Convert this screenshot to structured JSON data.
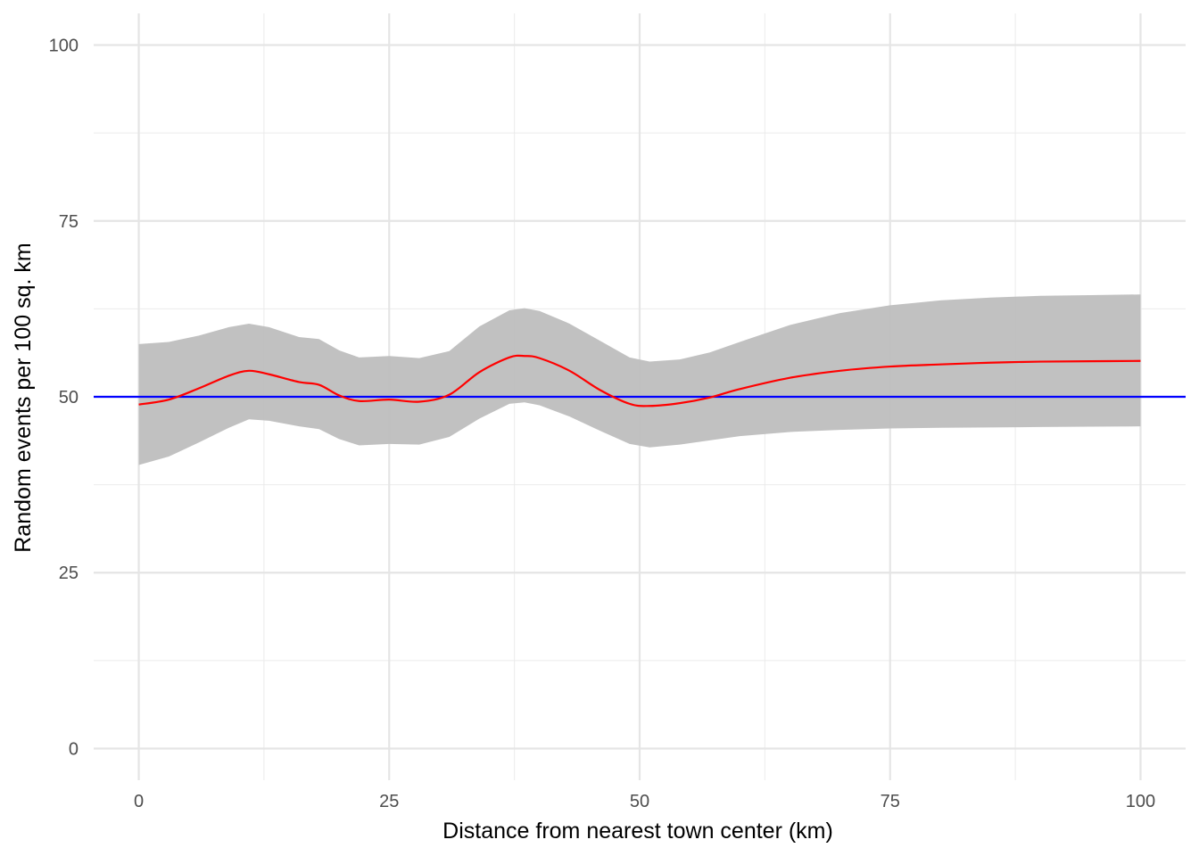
{
  "chart_data": {
    "type": "line",
    "title": "",
    "xlabel": "Distance from nearest town center (km)",
    "ylabel": "Random events per 100 sq. km",
    "xlim": [
      -4.5,
      104.5
    ],
    "ylim": [
      -4.5,
      104.5
    ],
    "x_ticks": [
      0,
      25,
      50,
      75,
      100
    ],
    "y_ticks": [
      0,
      25,
      50,
      75,
      100
    ],
    "grid": true,
    "legend": "none",
    "series": [
      {
        "role": "smoothed-estimate",
        "color": "#ff0000",
        "x": [
          0,
          3,
          6,
          9,
          11,
          13,
          16,
          18,
          20,
          22,
          25,
          28,
          31,
          34,
          37,
          38.5,
          40,
          43,
          46,
          49,
          51,
          54,
          57,
          60,
          65,
          70,
          75,
          80,
          85,
          90,
          95,
          100
        ],
        "y": [
          48.9,
          49.6,
          51.2,
          53.0,
          53.7,
          53.2,
          52.1,
          51.7,
          50.2,
          49.4,
          49.6,
          49.3,
          50.3,
          53.5,
          55.6,
          55.8,
          55.5,
          53.7,
          51.0,
          49.0,
          48.7,
          49.1,
          49.9,
          51.1,
          52.7,
          53.7,
          54.3,
          54.6,
          54.85,
          55.0,
          55.05,
          55.1
        ]
      }
    ],
    "confidence_band": {
      "color": "#bebebe",
      "x": [
        0,
        3,
        6,
        9,
        11,
        13,
        16,
        18,
        20,
        22,
        25,
        28,
        31,
        34,
        37,
        38.5,
        40,
        43,
        46,
        49,
        51,
        54,
        57,
        60,
        65,
        70,
        75,
        80,
        85,
        90,
        95,
        100
      ],
      "lower": [
        40.3,
        41.5,
        43.5,
        45.6,
        46.8,
        46.6,
        45.8,
        45.4,
        44.0,
        43.1,
        43.3,
        43.2,
        44.3,
        46.9,
        49.0,
        49.2,
        48.8,
        47.2,
        45.2,
        43.3,
        42.8,
        43.2,
        43.8,
        44.4,
        45.0,
        45.3,
        45.5,
        45.6,
        45.65,
        45.7,
        45.75,
        45.8
      ],
      "upper": [
        57.5,
        57.8,
        58.7,
        59.9,
        60.4,
        59.9,
        58.5,
        58.2,
        56.6,
        55.6,
        55.8,
        55.5,
        56.5,
        60.0,
        62.3,
        62.6,
        62.2,
        60.4,
        58.0,
        55.6,
        55.0,
        55.3,
        56.3,
        57.8,
        60.2,
        61.9,
        63.0,
        63.7,
        64.1,
        64.35,
        64.45,
        64.55
      ]
    },
    "reference_line": {
      "y": 50,
      "color": "#0000ff"
    }
  }
}
